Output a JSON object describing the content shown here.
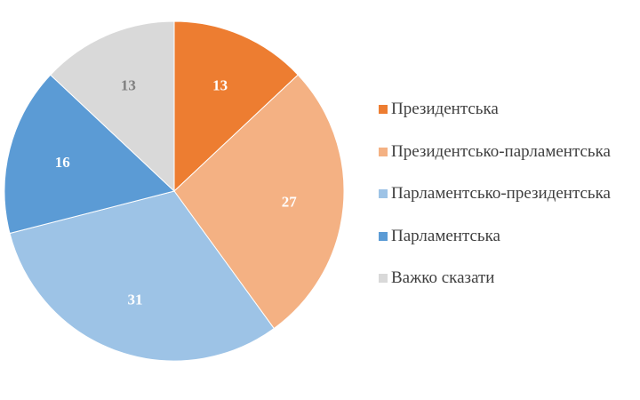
{
  "chart_data": {
    "type": "pie",
    "categories": [
      "Президентська",
      "Президентсько-парламентська",
      "Парламентсько-президентська",
      "Парламентська",
      "Важко сказати"
    ],
    "values": [
      13,
      27,
      31,
      16,
      13
    ],
    "colors": [
      "#ed7d31",
      "#f4b183",
      "#9dc3e6",
      "#5b9bd5",
      "#d9d9d9"
    ],
    "label_colors": [
      "#ffffff",
      "#ffffff",
      "#ffffff",
      "#ffffff",
      "#7f7f7f"
    ],
    "start_angle_deg": 0,
    "direction": "clockwise",
    "legend_position": "right",
    "data_labels": [
      "13",
      "27",
      "31",
      "16",
      "13"
    ]
  }
}
